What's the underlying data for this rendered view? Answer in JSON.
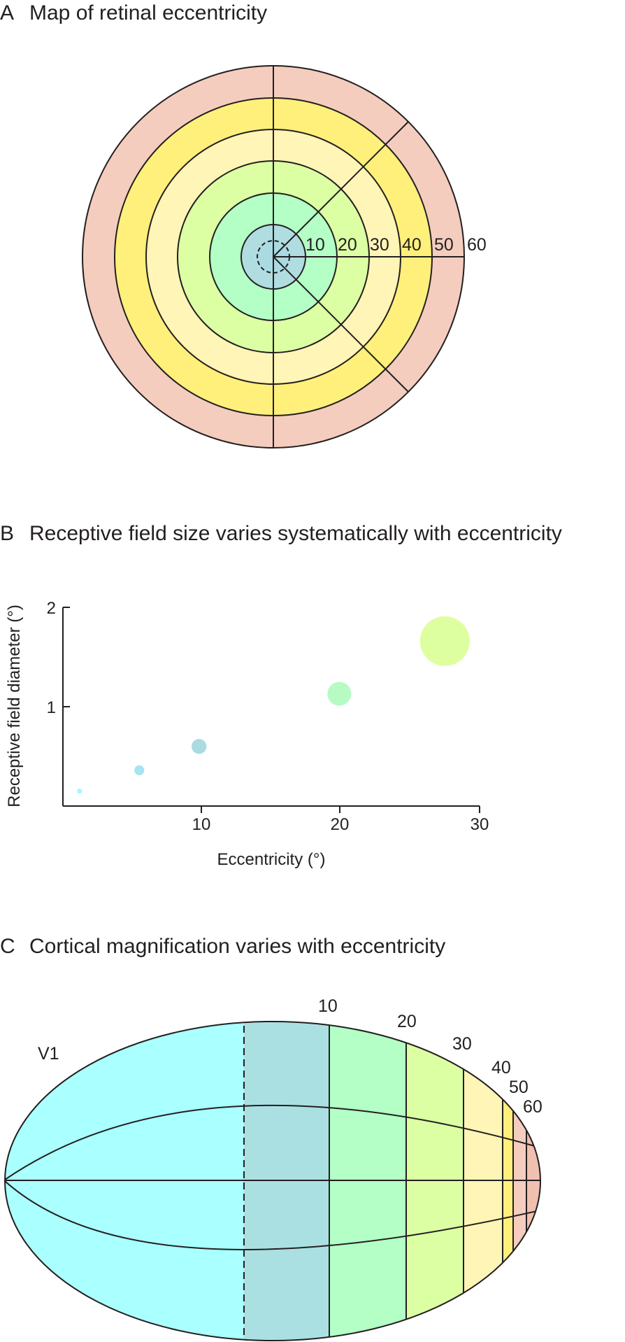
{
  "panel_a": {
    "letter": "A",
    "title": "Map of retinal eccentricity",
    "ring_labels": [
      "10",
      "20",
      "30",
      "40",
      "50",
      "60"
    ],
    "ring_colors": [
      "#b0dde0",
      "#b3ffc5",
      "#dcffa4",
      "#fff5b6",
      "#fef07a",
      "#f4cdbf"
    ],
    "center_fill": "#aadbe2"
  },
  "panel_b": {
    "letter": "B",
    "title": "Receptive field size varies systematically with eccentricity",
    "chart_data": {
      "type": "scatter",
      "xlabel": "Eccentricity (°)",
      "ylabel": "Receptive field diameter (°)",
      "xlim": [
        0,
        30
      ],
      "ylim": [
        0,
        2
      ],
      "xticks": [
        "10",
        "20",
        "30"
      ],
      "yticks": [
        "1",
        "2"
      ],
      "points": [
        {
          "x": 1.2,
          "y": 0.15,
          "size": 0.05,
          "color": "#a5f7ff"
        },
        {
          "x": 5.5,
          "y": 0.36,
          "size": 0.1,
          "color": "#a6e4f3"
        },
        {
          "x": 9.8,
          "y": 0.6,
          "size": 0.15,
          "color": "#a9dbe0"
        },
        {
          "x": 19.9,
          "y": 1.13,
          "size": 0.24,
          "color": "#b7fbc4"
        },
        {
          "x": 27.5,
          "y": 1.66,
          "size": 0.5,
          "color": "#deff9f"
        }
      ]
    }
  },
  "panel_c": {
    "letter": "C",
    "title": "Cortical magnification varies with eccentricity",
    "area_label": "V1",
    "band_labels": [
      "10",
      "20",
      "30",
      "40",
      "50",
      "60"
    ],
    "band_colors": [
      "#aaffff",
      "#abe0e3",
      "#b3ffc5",
      "#dcffa4",
      "#fff5b6",
      "#fef07a",
      "#f4cdbf",
      "#f0c0b0"
    ]
  }
}
